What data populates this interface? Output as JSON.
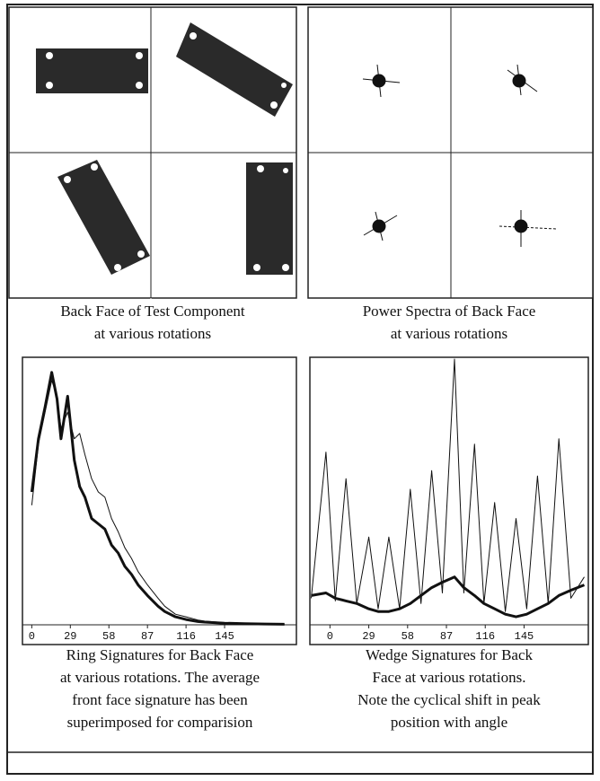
{
  "captions": [
    [
      "Back Face of Test Component",
      "at various rotations"
    ],
    [
      "Power Spectra of Back Face",
      "at various rotations"
    ],
    [
      "Ring Signatures for Back Face",
      "at various rotations. The average",
      "front face signature has been",
      "superimposed for comparision"
    ],
    [
      "Wedge Signatures for Back",
      "Face at various rotations.",
      "Note the cyclical shift in peak",
      "position with angle"
    ]
  ],
  "chart_data": [
    {
      "type": "line",
      "x": [
        0,
        5,
        10,
        15,
        19,
        22,
        27,
        32,
        36,
        40,
        45,
        50,
        55,
        60,
        65,
        70,
        75,
        80,
        87,
        95,
        100,
        108,
        116,
        125,
        130,
        145,
        160,
        175,
        190
      ],
      "xlim": [
        -7,
        199
      ],
      "ylim": [
        0,
        100
      ],
      "xticks": [
        0,
        29,
        58,
        87,
        116,
        145
      ],
      "series": [
        {
          "color": "#111111",
          "width": 3,
          "values": [
            50,
            70,
            82,
            95,
            85,
            70,
            86,
            62,
            52,
            48,
            40,
            38,
            36,
            30,
            27,
            22,
            19,
            15,
            11,
            7,
            5,
            3,
            2,
            1.2,
            1,
            0.6,
            0.4,
            0.3,
            0.2
          ]
        },
        {
          "color": "#111111",
          "width": 1,
          "values": [
            45,
            68,
            80,
            92,
            86,
            74,
            80,
            70,
            72,
            64,
            55,
            50,
            48,
            40,
            35,
            29,
            25,
            20,
            15,
            10,
            7,
            4,
            3,
            1.8,
            1.4,
            0.8,
            0.5,
            0.3,
            0.2
          ]
        }
      ]
    },
    {
      "type": "line",
      "x": [
        -14,
        -3,
        4,
        12,
        20,
        29,
        36,
        44,
        52,
        60,
        68,
        76,
        84,
        93,
        100,
        108,
        115,
        123,
        131,
        139,
        147,
        155,
        163,
        171,
        180,
        190
      ],
      "xlim": [
        -15,
        193
      ],
      "ylim": [
        0,
        100
      ],
      "xticks": [
        0,
        29,
        58,
        87,
        116,
        145
      ],
      "series": [
        {
          "color": "#111111",
          "width": 1,
          "values": [
            10,
            65,
            9,
            55,
            8,
            33,
            6,
            33,
            6,
            51,
            8,
            58,
            12,
            100,
            12,
            68,
            8,
            46,
            5,
            40,
            6,
            56,
            8,
            70,
            10,
            18
          ]
        },
        {
          "color": "#111111",
          "width": 3,
          "values": [
            11,
            12,
            10,
            9,
            8,
            6,
            5,
            5,
            6,
            8,
            11,
            14,
            16,
            18,
            14,
            11,
            8,
            6,
            4,
            3,
            4,
            6,
            8,
            11,
            13,
            15
          ]
        }
      ]
    }
  ]
}
